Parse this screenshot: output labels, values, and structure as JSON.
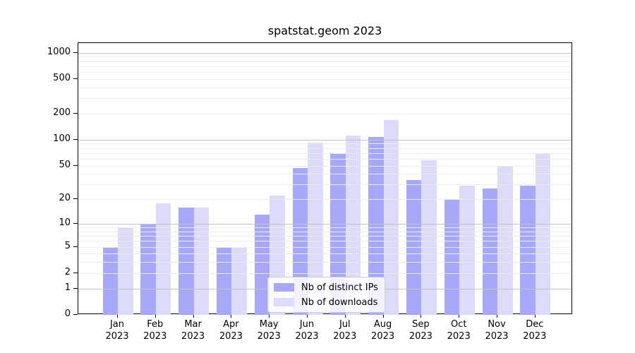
{
  "title": "spatstat.geom 2023",
  "chart_data": {
    "type": "bar",
    "title": "spatstat.geom 2023",
    "categories": [
      "Jan 2023",
      "Feb 2023",
      "Mar 2023",
      "Apr 2023",
      "May 2023",
      "Jun 2023",
      "Jul 2023",
      "Aug 2023",
      "Sep 2023",
      "Oct 2023",
      "Nov 2023",
      "Dec 2023"
    ],
    "series": [
      {
        "name": "Nb of distinct IPs",
        "color": "#a8a8f8",
        "values": [
          5,
          10,
          16,
          5,
          13,
          47,
          70,
          107,
          34,
          20,
          27,
          29
        ]
      },
      {
        "name": "Nb of downloads",
        "color": "#dcdcfa",
        "values": [
          9,
          18,
          16,
          5,
          22,
          93,
          111,
          170,
          58,
          29,
          50,
          68
        ]
      }
    ],
    "yscale": "log1p",
    "yticks": [
      0,
      1,
      2,
      5,
      10,
      20,
      50,
      100,
      200,
      500,
      1000
    ],
    "major_grid_values": [
      1,
      10,
      100,
      1000
    ],
    "ylim": [
      0,
      1285
    ],
    "xlabel": "",
    "ylabel": "",
    "grid": "horizontal major+minor",
    "legend_position": "lower center",
    "colors": {
      "major_grid": "#c2c2c2",
      "minor_grid": "#ebebeb",
      "spine": "#000000",
      "background": "#ffffff"
    }
  }
}
